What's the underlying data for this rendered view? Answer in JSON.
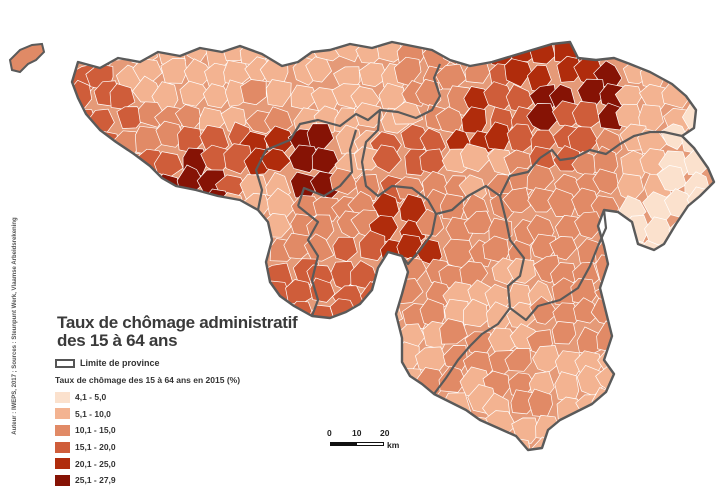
{
  "map": {
    "title_line1": "Taux de chômage administratif",
    "title_line2": "des 15 à 64 ans",
    "source": "Auteur : IWEPS, 2017 ; Sources : Steunpunt Werk, Vlaamse Arbeidsrekening",
    "legend": {
      "province_label": "Limite de province",
      "title": "Taux de chômage des 15 à 64 ans en 2015 (%)",
      "classes": [
        {
          "label": "4,1 - 5,0",
          "color": "#fbe1cd"
        },
        {
          "label": "5,1 - 10,0",
          "color": "#f3b391"
        },
        {
          "label": "10,1 - 15,0",
          "color": "#e18a66"
        },
        {
          "label": "15,1 - 20,0",
          "color": "#cf5d3a"
        },
        {
          "label": "20,1 - 25,0",
          "color": "#b02c0c"
        },
        {
          "label": "25,1 - 27,9",
          "color": "#861305"
        }
      ]
    },
    "scale": {
      "ticks": [
        "0",
        "10",
        "20"
      ],
      "unit": "km"
    },
    "colors": {
      "province_border": "#5a5a5a",
      "commune_border": "#ffffff"
    }
  }
}
